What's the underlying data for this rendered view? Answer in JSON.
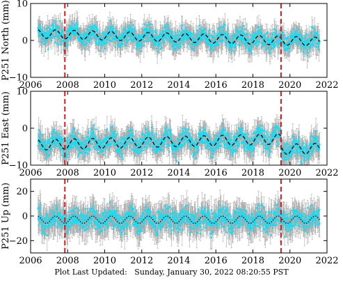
{
  "chart_data": [
    {
      "type": "scatter",
      "ylabel": "P251 North (mm)",
      "xlim": [
        2006,
        2022
      ],
      "ylim": [
        -10,
        10
      ],
      "x_ticks": [
        2006,
        2008,
        2010,
        2012,
        2014,
        2016,
        2018,
        2020,
        2022
      ],
      "x_tick_labels": [
        "2006",
        "2008",
        "2010",
        "2012",
        "2014",
        "2016",
        "2018",
        "2020",
        "2022"
      ],
      "y_ticks": [
        -10,
        0,
        10
      ],
      "y_tick_labels": [
        "−10",
        "0",
        "10"
      ],
      "data_start": 2006.4,
      "data_end": 2021.6,
      "baseline": 1.8,
      "trend": -0.14,
      "seasonal_amp": 1.2,
      "noise": 1.3,
      "error_half": 2.4,
      "model_baseline": 1.8,
      "series": [
        {
          "name": "",
          "color": "#00e5ff",
          "style": "points"
        },
        {
          "name": "",
          "color": "#a9a9a9",
          "style": "error-bars"
        },
        {
          "name": "",
          "color": "#000000",
          "style": "dashed"
        }
      ],
      "events": [
        2007.85,
        2019.52
      ],
      "event_color": "#ee0000"
    },
    {
      "type": "scatter",
      "ylabel": "P251 East (mm)",
      "xlim": [
        2006,
        2022
      ],
      "ylim": [
        -10,
        10
      ],
      "x_ticks": [
        2006,
        2008,
        2010,
        2012,
        2014,
        2016,
        2018,
        2020,
        2022
      ],
      "x_tick_labels": [
        "2006",
        "2008",
        "2010",
        "2012",
        "2014",
        "2016",
        "2018",
        "2020",
        "2022"
      ],
      "y_ticks": [
        -10,
        0,
        10
      ],
      "y_tick_labels": [
        "−10",
        "0",
        "10"
      ],
      "data_start": 2006.4,
      "data_end": 2021.6,
      "baseline": -4.5,
      "trend": 0.12,
      "seasonal_amp": 1.4,
      "noise": 1.4,
      "error_half": 2.6,
      "model_baseline": -4.5,
      "post_event_offset": -2.8,
      "series": [
        {
          "name": "",
          "color": "#00e5ff",
          "style": "points"
        },
        {
          "name": "",
          "color": "#a9a9a9",
          "style": "error-bars"
        },
        {
          "name": "",
          "color": "#000000",
          "style": "dashed"
        }
      ],
      "events": [
        2007.85,
        2019.52
      ],
      "event_color": "#ee0000"
    },
    {
      "type": "scatter",
      "ylabel": "P251 Up (mm)",
      "xlim": [
        2006,
        2022
      ],
      "ylim": [
        -30,
        30
      ],
      "x_ticks": [
        2006,
        2008,
        2010,
        2012,
        2014,
        2016,
        2018,
        2020,
        2022
      ],
      "x_tick_labels": [
        "2006",
        "2008",
        "2010",
        "2012",
        "2014",
        "2016",
        "2018",
        "2020",
        "2022"
      ],
      "y_ticks": [
        -20,
        0,
        20
      ],
      "y_tick_labels": [
        "−20",
        "0",
        "20"
      ],
      "data_start": 2006.4,
      "data_end": 2021.6,
      "baseline": -3.0,
      "trend": 0.0,
      "seasonal_amp": 3.0,
      "noise": 4.5,
      "error_half": 9.0,
      "model_baseline": -3.0,
      "series": [
        {
          "name": "",
          "color": "#00e5ff",
          "style": "points"
        },
        {
          "name": "",
          "color": "#a9a9a9",
          "style": "error-bars"
        },
        {
          "name": "",
          "color": "#000000",
          "style": "dotted"
        }
      ],
      "events": [
        2007.85,
        2019.52
      ],
      "event_color": "#ee0000"
    }
  ],
  "footer": "Plot Last Updated:   Sunday, January 30, 2022 08:20:55 PST"
}
